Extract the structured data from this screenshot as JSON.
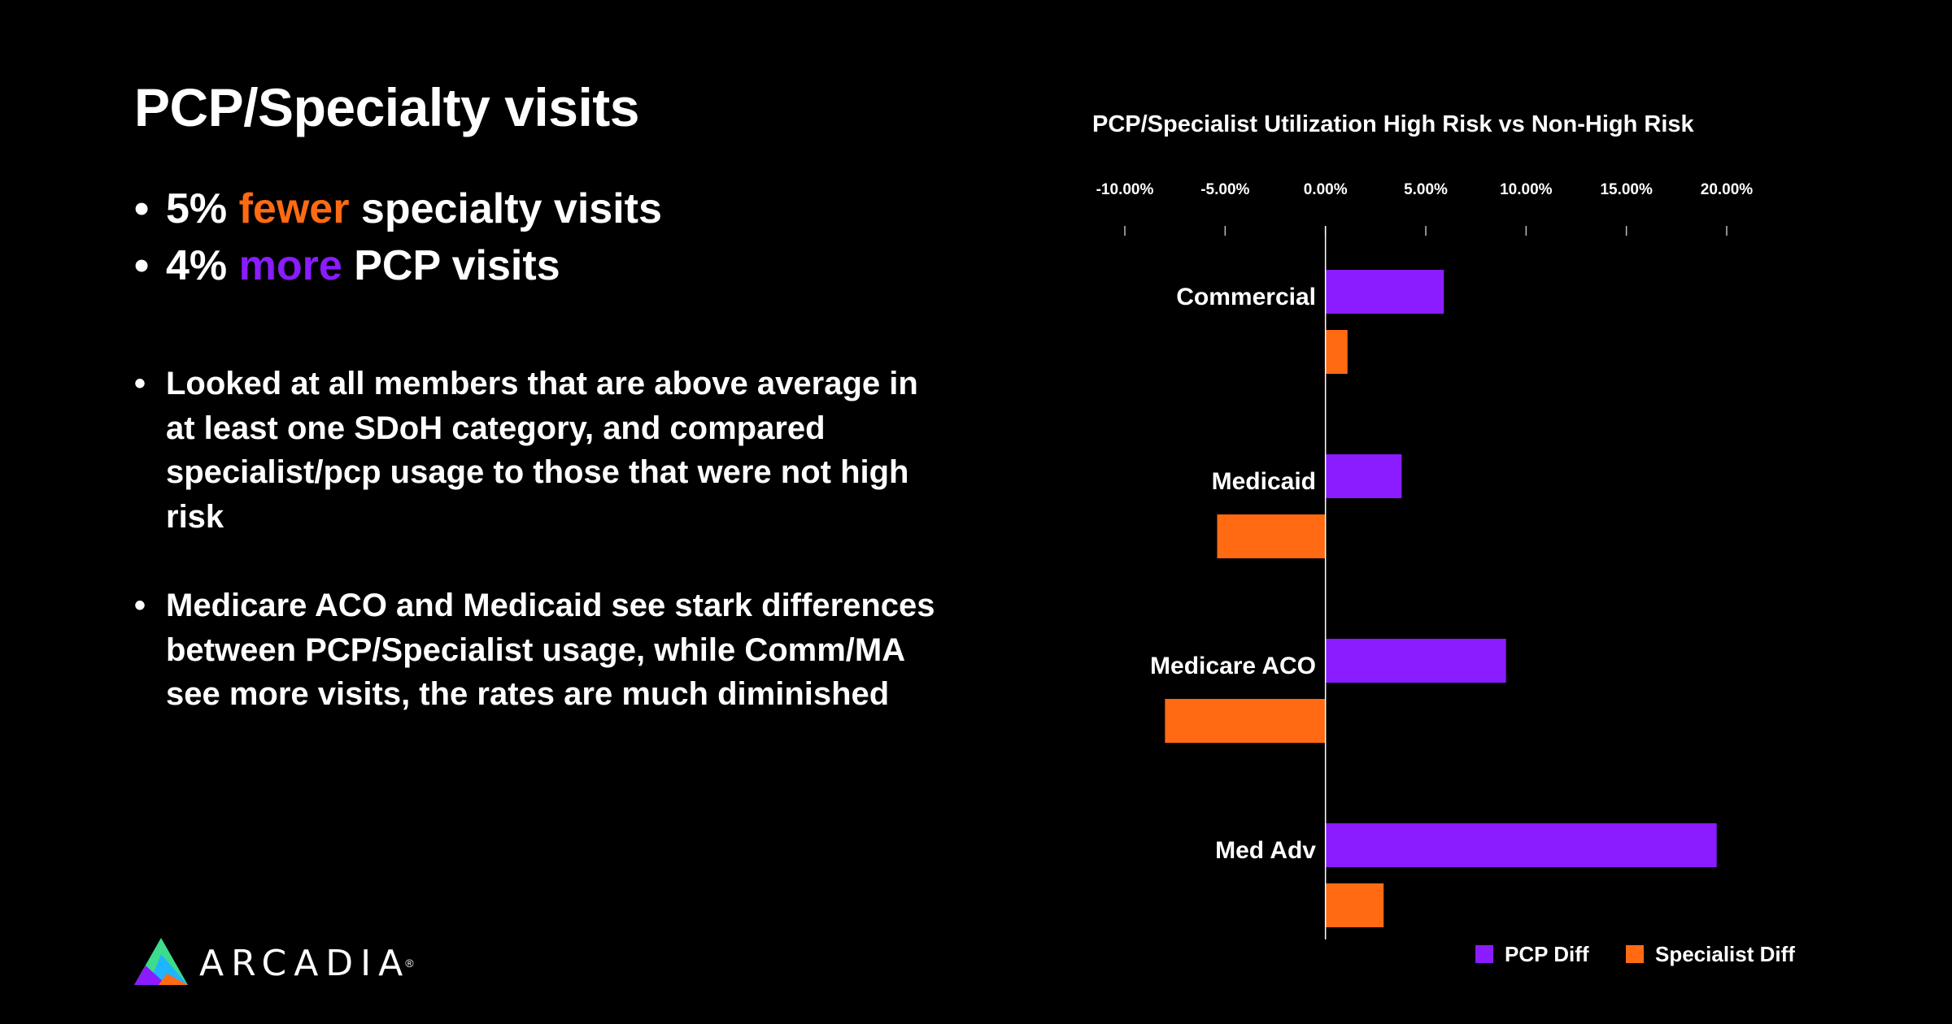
{
  "slide": {
    "title": "PCP/Specialty visits",
    "headlines": [
      {
        "pre": "5% ",
        "accent": "fewer",
        "post": " specialty visits",
        "accent_color": "#ff6a13"
      },
      {
        "pre": "4% ",
        "accent": "more",
        "post": " PCP visits",
        "accent_color": "#8a1cff"
      }
    ],
    "bullet_char": "•",
    "details": [
      "Looked at all members that are above average in at least one SDoH category, and compared specialist/pcp usage to those that were not high risk",
      "Medicare ACO and Medicaid see stark differences between PCP/Specialist usage, while Comm/MA see more visits, the rates are much diminished"
    ]
  },
  "logo": {
    "text": "ARCADIA",
    "reg_mark": "®",
    "colors": [
      "#3cdc8c",
      "#8a1cff",
      "#ff6a13",
      "#1fb4ff"
    ]
  },
  "chart_data": {
    "type": "bar",
    "orientation": "horizontal",
    "title": "PCP/Specialist Utilization High Risk vs Non-High Risk",
    "categories": [
      "Commercial",
      "Medicaid",
      "Medicare ACO",
      "Med Adv"
    ],
    "series": [
      {
        "name": "PCP Diff",
        "color": "#8a1cff",
        "values": [
          5.9,
          3.8,
          9.0,
          19.5
        ]
      },
      {
        "name": "Specialist Diff",
        "color": "#ff6a13",
        "values": [
          1.1,
          -5.4,
          -8.0,
          2.9
        ]
      }
    ],
    "xlim": [
      -10,
      20
    ],
    "xticks": [
      -10,
      -5,
      0,
      5,
      10,
      15,
      20
    ],
    "tick_labels": [
      "-10.00%",
      "-5.00%",
      "0.00%",
      "5.00%",
      "10.00%",
      "15.00%",
      "20.00%"
    ],
    "tick_position": "top",
    "legend_position": "bottom-right",
    "grid": false,
    "xlabel": "",
    "ylabel": ""
  }
}
